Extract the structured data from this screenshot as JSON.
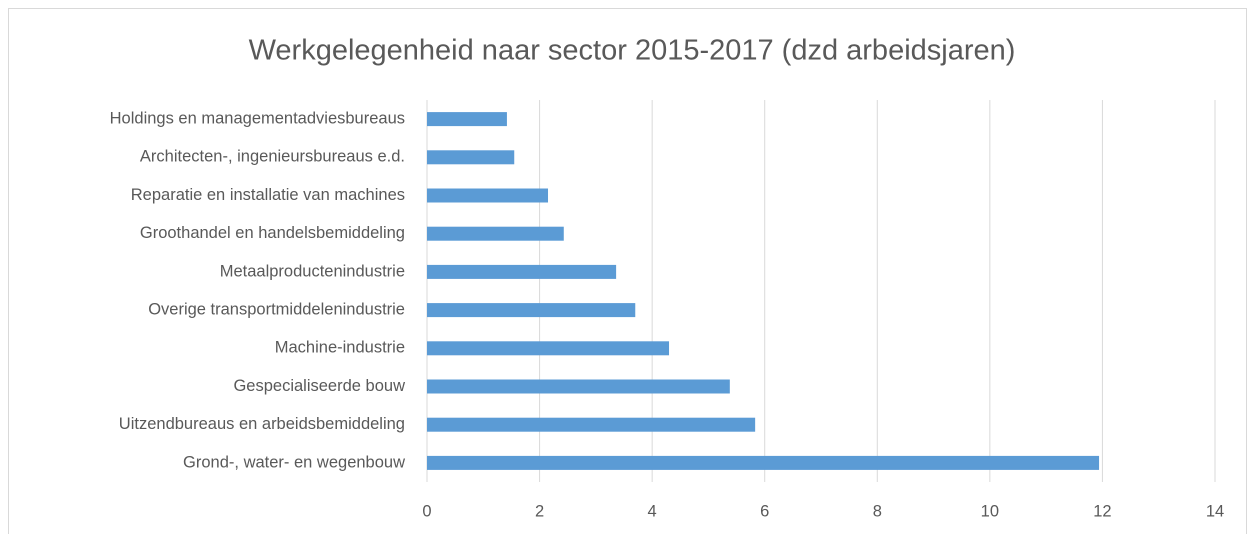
{
  "chart_data": {
    "type": "bar",
    "orientation": "horizontal",
    "title": "Werkgelegenheid naar sector 2015-2017 (dzd arbeidsjaren)",
    "categories": [
      "Holdings en managementadviesbureaus",
      "Architecten-, ingenieursbureaus e.d.",
      "Reparatie en installatie van machines",
      "Groothandel en handelsbemiddeling",
      "Metaalproductenindustrie",
      "Overige transportmiddelenindustrie",
      "Machine-industrie",
      "Gespecialiseerde bouw",
      "Uitzendbureaus en arbeidsbemiddeling",
      "Grond-, water-  en wegenbouw"
    ],
    "values": [
      1.42,
      1.55,
      2.15,
      2.43,
      3.36,
      3.7,
      4.3,
      5.38,
      5.83,
      11.94
    ],
    "color": "#5b9bd5",
    "xlim": [
      0,
      14
    ],
    "xticks": [
      0,
      2,
      4,
      6,
      8,
      10,
      12,
      14
    ],
    "grid": true
  }
}
